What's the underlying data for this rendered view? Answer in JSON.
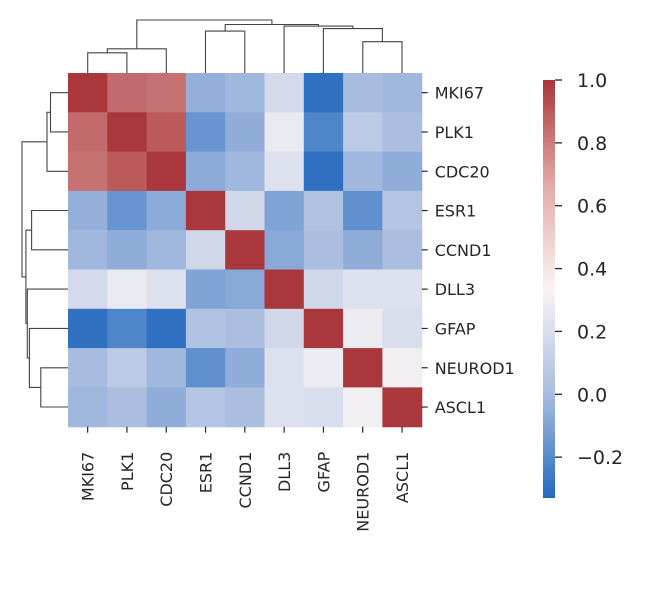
{
  "chart_data": {
    "type": "heatmap",
    "title": "",
    "xlabel": "",
    "ylabel": "",
    "row_labels": [
      "MKI67",
      "PLK1",
      "CDC20",
      "ESR1",
      "CCND1",
      "DLL3",
      "GFAP",
      "NEUROD1",
      "ASCL1"
    ],
    "col_labels": [
      "MKI67",
      "PLK1",
      "CDC20",
      "ESR1",
      "CCND1",
      "DLL3",
      "GFAP",
      "NEUROD1",
      "ASCL1"
    ],
    "values": [
      [
        1.0,
        0.85,
        0.83,
        -0.05,
        -0.02,
        0.18,
        -0.3,
        0.0,
        -0.02
      ],
      [
        0.85,
        1.0,
        0.9,
        -0.16,
        -0.06,
        0.27,
        -0.22,
        0.08,
        0.01
      ],
      [
        0.83,
        0.9,
        1.0,
        -0.07,
        -0.02,
        0.22,
        -0.3,
        -0.02,
        -0.06
      ],
      [
        -0.05,
        -0.16,
        -0.07,
        1.0,
        0.16,
        -0.1,
        0.03,
        -0.18,
        0.05
      ],
      [
        -0.02,
        -0.06,
        -0.02,
        0.16,
        1.0,
        -0.08,
        0.01,
        -0.06,
        0.01
      ],
      [
        0.18,
        0.27,
        0.22,
        -0.1,
        -0.08,
        1.0,
        0.16,
        0.22,
        0.22
      ],
      [
        -0.3,
        -0.22,
        -0.3,
        0.03,
        0.01,
        0.16,
        1.0,
        0.28,
        0.2
      ],
      [
        0.0,
        0.08,
        -0.02,
        -0.18,
        -0.06,
        0.22,
        0.28,
        1.0,
        0.3
      ],
      [
        -0.02,
        0.01,
        -0.06,
        0.05,
        0.01,
        0.22,
        0.2,
        0.3,
        1.0
      ]
    ],
    "colorbar": {
      "min": -0.33,
      "max": 1.0,
      "ticks": [
        1.0,
        0.8,
        0.6,
        0.4,
        0.2,
        0.0,
        -0.2
      ],
      "tick_labels": [
        "1.0",
        "0.8",
        "0.6",
        "0.4",
        "0.2",
        "0.0",
        "−0.2"
      ],
      "colormap": "vlag",
      "stops": [
        "#2369bd",
        "#a9bde0",
        "#f9f4f4",
        "#e3aaa7",
        "#a9373b"
      ]
    },
    "dendrogram": {
      "row_tree": [
        [
          0,
          1,
          0.4
        ],
        [
          9,
          2,
          0.48
        ],
        [
          3,
          4,
          0.83
        ],
        [
          7,
          8,
          0.62
        ],
        [
          6,
          12,
          0.88
        ],
        [
          5,
          13,
          0.93
        ],
        [
          11,
          14,
          0.96
        ],
        [
          10,
          15,
          1.05
        ]
      ],
      "col_tree": [
        [
          0,
          1,
          0.4
        ],
        [
          9,
          2,
          0.48
        ],
        [
          3,
          4,
          0.83
        ],
        [
          7,
          8,
          0.62
        ],
        [
          6,
          12,
          0.88
        ],
        [
          5,
          13,
          0.93
        ],
        [
          11,
          14,
          0.96
        ],
        [
          10,
          15,
          1.05
        ]
      ]
    }
  }
}
